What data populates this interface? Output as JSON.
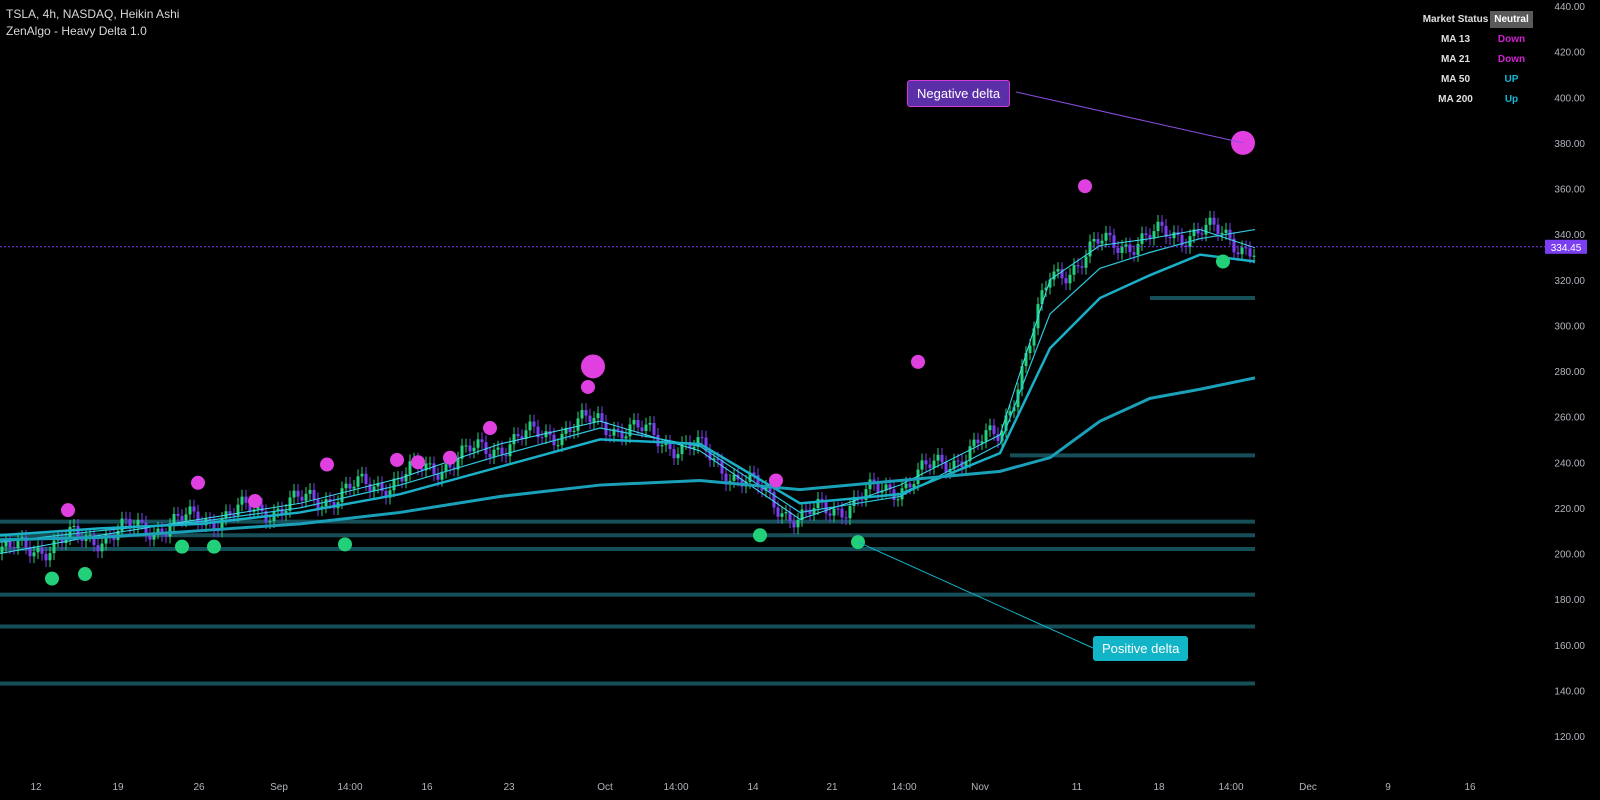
{
  "header": {
    "symbol_line": "TSLA, 4h, NASDAQ, Heikin Ashi",
    "indicator_line": "ZenAlgo - Heavy Delta 1.0"
  },
  "market_status": {
    "title": "Market Status",
    "value": "Neutral",
    "rows": [
      {
        "label": "MA 13",
        "value": "Down",
        "color": "#d020d0"
      },
      {
        "label": "MA 21",
        "value": "Down",
        "color": "#d020d0"
      },
      {
        "label": "MA 50",
        "value": "UP",
        "color": "#12b8d6"
      },
      {
        "label": "MA 200",
        "value": "Up",
        "color": "#12b8d6"
      }
    ]
  },
  "annotations": {
    "negative": {
      "label": "Negative delta",
      "color": "#5b2fa8",
      "border": "#d43ad4"
    },
    "positive": {
      "label": "Positive delta",
      "color": "#12b4c8"
    }
  },
  "chart_data": {
    "type": "line",
    "price_label": "334.45",
    "y_ticks": [
      "440.00",
      "420.00",
      "400.00",
      "380.00",
      "360.00",
      "340.00",
      "320.00",
      "300.00",
      "280.00",
      "260.00",
      "240.00",
      "220.00",
      "200.00",
      "180.00",
      "160.00",
      "140.00",
      "120.00"
    ],
    "x_ticks": [
      "12",
      "19",
      "26",
      "Sep",
      "14:00",
      "16",
      "23",
      "Oct",
      "14:00",
      "14",
      "21",
      "14:00",
      "Nov",
      "11",
      "18",
      "14:00",
      "Dec",
      "9",
      "16"
    ],
    "ylim": [
      120,
      440
    ],
    "series": [
      {
        "x": [
          0,
          100,
          200,
          300,
          400,
          500,
          600,
          700,
          800,
          900,
          1000,
          1050,
          1100,
          1150,
          1200,
          1255
        ],
        "values": [
          200,
          208,
          215,
          222,
          233,
          248,
          258,
          245,
          215,
          230,
          252,
          320,
          335,
          338,
          342,
          334
        ]
      },
      {
        "x": [
          0,
          100,
          200,
          300,
          400,
          500,
          600,
          700,
          800,
          900,
          1000,
          1050,
          1100,
          1150,
          1200,
          1255
        ],
        "values": [
          205,
          210,
          214,
          220,
          230,
          243,
          255,
          247,
          218,
          225,
          248,
          305,
          325,
          332,
          338,
          342
        ]
      },
      {
        "x": [
          0,
          100,
          200,
          300,
          400,
          500,
          600,
          700,
          800,
          900,
          1000,
          1050,
          1100,
          1150,
          1200,
          1255
        ],
        "values": [
          208,
          211,
          213,
          218,
          226,
          238,
          250,
          248,
          222,
          226,
          244,
          290,
          312,
          322,
          331,
          328
        ]
      },
      {
        "x": [
          0,
          100,
          200,
          300,
          400,
          500,
          600,
          700,
          800,
          900,
          1000,
          1050,
          1100,
          1150,
          1200,
          1255
        ],
        "values": [
          206,
          207,
          210,
          213,
          218,
          225,
          230,
          232,
          228,
          232,
          236,
          242,
          258,
          268,
          272,
          277
        ]
      }
    ],
    "delta_bubbles_negative": [
      {
        "x": 68,
        "y": 219,
        "size": 7
      },
      {
        "x": 198,
        "y": 231,
        "size": 7
      },
      {
        "x": 255,
        "y": 223,
        "size": 7
      },
      {
        "x": 327,
        "y": 239,
        "size": 7
      },
      {
        "x": 397,
        "y": 241,
        "size": 7
      },
      {
        "x": 418,
        "y": 240,
        "size": 7
      },
      {
        "x": 450,
        "y": 242,
        "size": 7
      },
      {
        "x": 490,
        "y": 255,
        "size": 7
      },
      {
        "x": 593,
        "y": 282,
        "size": 12
      },
      {
        "x": 588,
        "y": 273,
        "size": 7
      },
      {
        "x": 776,
        "y": 232,
        "size": 7
      },
      {
        "x": 918,
        "y": 284,
        "size": 7
      },
      {
        "x": 1085,
        "y": 361,
        "size": 7
      },
      {
        "x": 1243,
        "y": 380,
        "size": 12
      }
    ],
    "delta_bubbles_positive": [
      {
        "x": 52,
        "y": 189,
        "size": 7
      },
      {
        "x": 85,
        "y": 191,
        "size": 7
      },
      {
        "x": 182,
        "y": 203,
        "size": 7
      },
      {
        "x": 214,
        "y": 203,
        "size": 7
      },
      {
        "x": 345,
        "y": 204,
        "size": 7
      },
      {
        "x": 760,
        "y": 208,
        "size": 7
      },
      {
        "x": 858,
        "y": 205,
        "size": 7
      },
      {
        "x": 1223,
        "y": 328,
        "size": 7
      }
    ],
    "volume_levels": [
      {
        "y": 202,
        "x1": 0,
        "x2": 1255
      },
      {
        "y": 208,
        "x1": 0,
        "x2": 1255
      },
      {
        "y": 214,
        "x1": 0,
        "x2": 1255
      },
      {
        "y": 243,
        "x1": 1010,
        "x2": 1255
      },
      {
        "y": 312,
        "x1": 1150,
        "x2": 1255
      },
      {
        "y": 182,
        "x1": 0,
        "x2": 1255
      },
      {
        "y": 168,
        "x1": 0,
        "x2": 1255
      },
      {
        "y": 143,
        "x1": 0,
        "x2": 1255
      }
    ]
  }
}
